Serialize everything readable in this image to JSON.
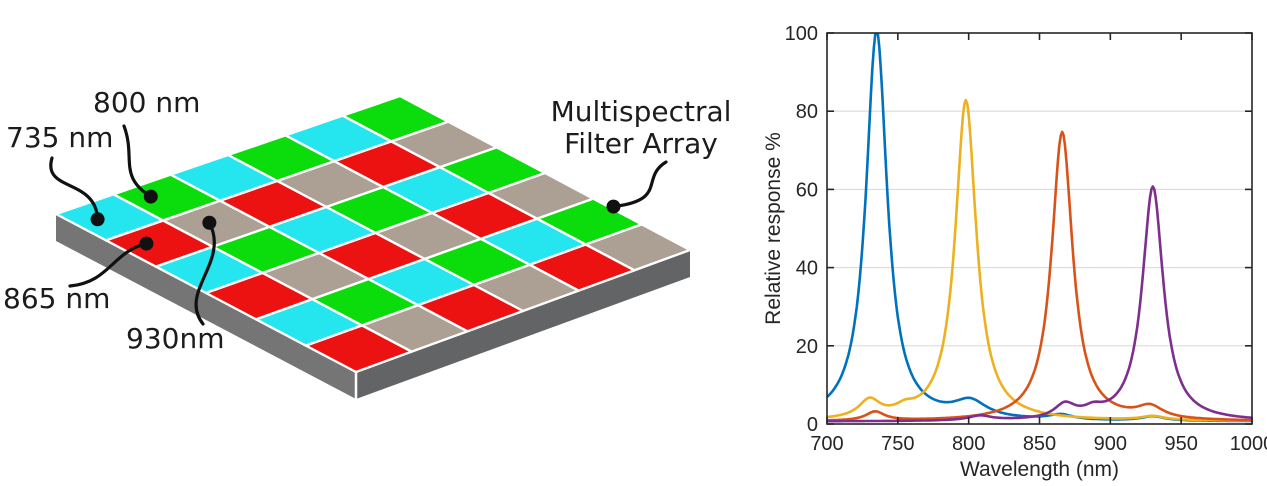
{
  "figure": {
    "title": "",
    "filter_array": {
      "name": "Multispectral Filter Array",
      "grid": {
        "rows": 6,
        "cols": 6
      },
      "pattern_2x2": [
        [
          "green",
          "gray"
        ],
        [
          "cyan",
          "red"
        ]
      ],
      "band_colors": {
        "cyan": {
          "hex": "#25e5ee",
          "wavelength": "735 nm"
        },
        "green": {
          "hex": "#0bdc0b",
          "wavelength": "800 nm"
        },
        "red": {
          "hex": "#ec1212",
          "wavelength": "865 nm"
        },
        "gray": {
          "hex": "#aba093",
          "wavelength": "930 nm"
        }
      },
      "slab_colors": {
        "left_face": "#757575",
        "right_face": "#636466",
        "seam": "#ffffff",
        "tile_gap": "#ffffff"
      },
      "labels": [
        {
          "text": "735 nm",
          "tile": {
            "row": 5,
            "col": 0
          },
          "band": "cyan"
        },
        {
          "text": "800 nm",
          "tile": {
            "row": 4,
            "col": 0
          },
          "band": "green"
        },
        {
          "text": "865 nm",
          "tile": {
            "row": 5,
            "col": 1
          },
          "band": "red"
        },
        {
          "text": "930nm",
          "tile": {
            "row": 4,
            "col": 1
          },
          "band": "gray"
        },
        {
          "line1": "Multispectral",
          "line2": "Filter Array",
          "full_text": "Multispectral Filter Array",
          "tile": {
            "row": 0,
            "col": 4
          },
          "band": "green"
        }
      ]
    }
  },
  "chart_data": {
    "type": "line",
    "title": "",
    "xlabel": "Wavelength (nm)",
    "ylabel": "Relative response %",
    "xlim": [
      700,
      1000
    ],
    "ylim": [
      0,
      100
    ],
    "xticks": [
      700,
      750,
      800,
      850,
      900,
      950,
      1000
    ],
    "yticks": [
      0,
      20,
      40,
      60,
      80,
      100
    ],
    "grid": "horizontal-only",
    "legend": "none",
    "axis_color": "#262626",
    "grid_color": "#dcdcdc",
    "series": [
      {
        "name": "735 nm filter",
        "color": "#0072BD",
        "baseline": 0.6,
        "peaks": [
          {
            "center": 735,
            "height": 100,
            "hwhm": 9
          },
          {
            "center": 801,
            "height": 4.2,
            "hwhm": 14
          },
          {
            "center": 865,
            "height": 1.3,
            "hwhm": 10
          },
          {
            "center": 930,
            "height": 1.1,
            "hwhm": 10
          }
        ],
        "peak_summary": {
          "center_nm": 735,
          "max_response_pct": 100
        }
      },
      {
        "name": "800 nm filter",
        "color": "#EDB120",
        "baseline": 0.7,
        "peaks": [
          {
            "center": 798,
            "height": 82,
            "hwhm": 9
          },
          {
            "center": 730,
            "height": 4.5,
            "hwhm": 9
          },
          {
            "center": 755,
            "height": 1.6,
            "hwhm": 8
          },
          {
            "center": 930,
            "height": 1.0,
            "hwhm": 10
          }
        ],
        "peak_summary": {
          "center_nm": 798,
          "max_response_pct": 82
        }
      },
      {
        "name": "865 nm filter",
        "color": "#D95319",
        "baseline": 0.6,
        "peaks": [
          {
            "center": 866,
            "height": 74,
            "hwhm": 9
          },
          {
            "center": 734,
            "height": 2.3,
            "hwhm": 8
          },
          {
            "center": 928,
            "height": 3.0,
            "hwhm": 11
          }
        ],
        "peak_summary": {
          "center_nm": 866,
          "max_response_pct": 74
        }
      },
      {
        "name": "930 nm filter",
        "color": "#7E2F8E",
        "baseline": 0.6,
        "peaks": [
          {
            "center": 930,
            "height": 60,
            "hwhm": 9
          },
          {
            "center": 868,
            "height": 3.6,
            "hwhm": 9
          },
          {
            "center": 888,
            "height": 1.8,
            "hwhm": 8
          },
          {
            "center": 808,
            "height": 1.2,
            "hwhm": 10
          }
        ],
        "peak_summary": {
          "center_nm": 930,
          "max_response_pct": 60
        }
      }
    ]
  }
}
